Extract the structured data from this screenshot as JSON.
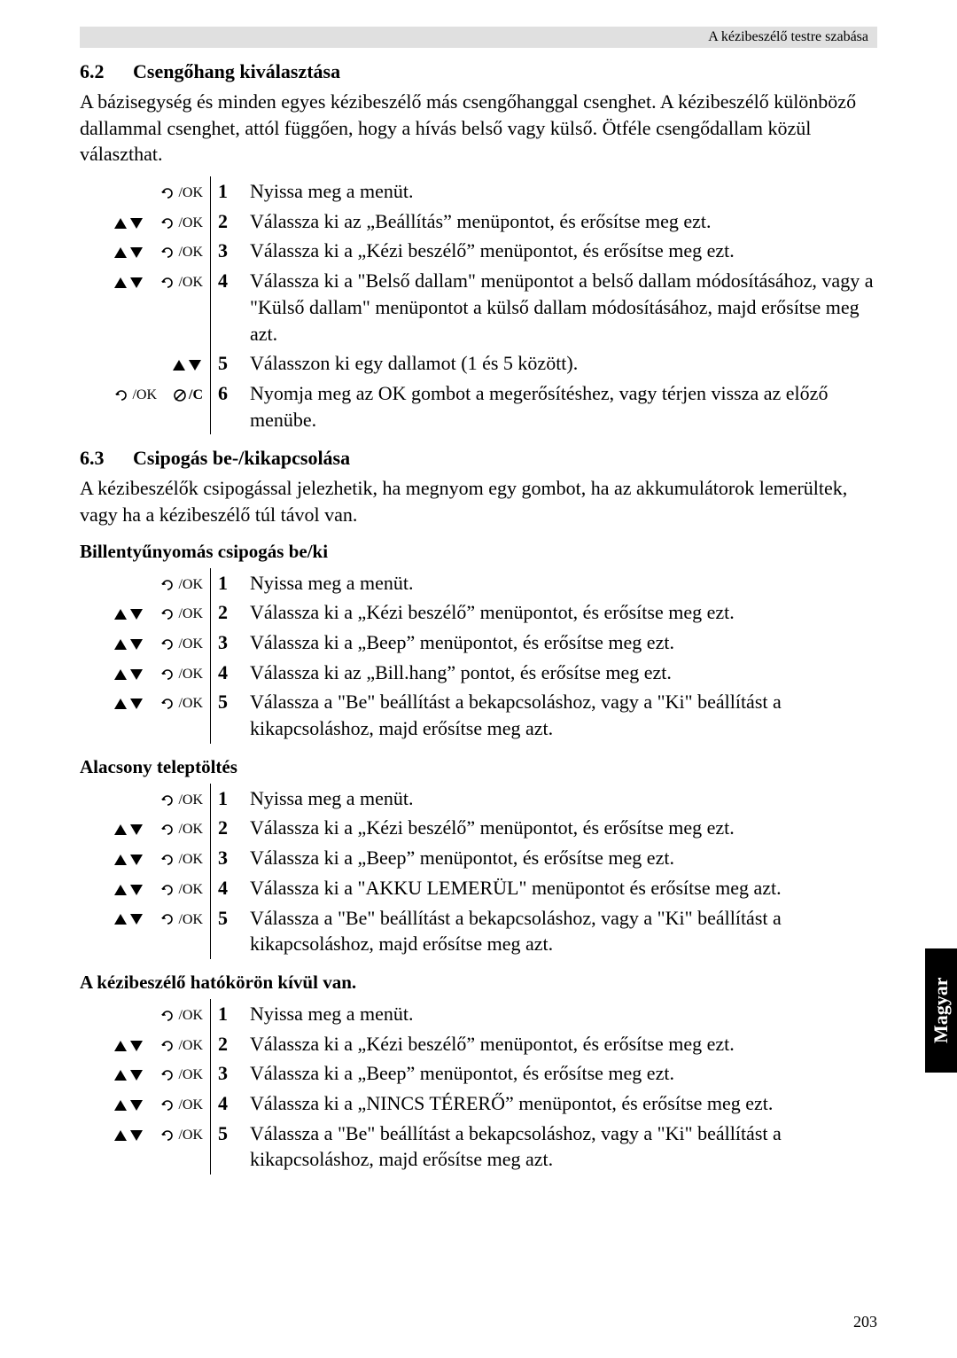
{
  "header": {
    "right_text": "A kézibeszélő testre szabása"
  },
  "side_tab": "Magyar",
  "page_number": "203",
  "icons": {
    "ok": "/OK",
    "cancel_suffix": "/C"
  },
  "section62": {
    "num": "6.2",
    "title": "Csengőhang kiválasztása",
    "intro": "A bázisegység és minden egyes kézibeszélő más csengőhanggal csenghet. A kézibeszélő különböző dallammal csenghet, attól függően, hogy a hívás belső vagy külső. Ötféle csengődallam közül választhat.",
    "steps": [
      {
        "icons": [
          "ok"
        ],
        "num": "1",
        "text": "Nyissa meg a menüt."
      },
      {
        "icons": [
          "updown",
          "ok"
        ],
        "num": "2",
        "text": "Válassza ki az „Beállítás” menüpontot, és erősítse meg ezt."
      },
      {
        "icons": [
          "updown",
          "ok"
        ],
        "num": "3",
        "text": "Válassza ki a „Kézi beszélő” menüpontot, és erősítse meg ezt."
      },
      {
        "icons": [
          "updown",
          "ok"
        ],
        "num": "4",
        "text": "Válassza ki a \"Belső dallam\" menüpontot a belső dallam módosításához, vagy a \"Külső dallam\" menüpontot a külső dallam módosításához, majd erősítse meg azt."
      },
      {
        "icons": [
          "updown"
        ],
        "num": "5",
        "text": "Válasszon ki egy dallamot (1 és 5 között)."
      },
      {
        "icons": [
          "ok",
          "cancel"
        ],
        "num": "6",
        "text": "Nyomja meg az OK gombot a megerősítéshez, vagy térjen vissza az előző menübe."
      }
    ]
  },
  "section63": {
    "num": "6.3",
    "title": "Csipogás be-/kikapcsolása",
    "intro": "A kézibeszélők csipogással jelezhetik, ha megnyom egy gombot, ha az akkumulátorok lemerültek, vagy ha a kézibeszélő túl távol van.",
    "sub1": {
      "title": "Billentyűnyomás csipogás be/ki",
      "steps": [
        {
          "icons": [
            "ok"
          ],
          "num": "1",
          "text": "Nyissa meg a menüt."
        },
        {
          "icons": [
            "updown",
            "ok"
          ],
          "num": "2",
          "text": "Válassza ki a „Kézi beszélő” menüpontot, és erősítse meg ezt."
        },
        {
          "icons": [
            "updown",
            "ok"
          ],
          "num": "3",
          "text": "Válassza ki a „Beep” menüpontot, és erősítse meg ezt."
        },
        {
          "icons": [
            "updown",
            "ok"
          ],
          "num": "4",
          "text": "Válassza ki az „Bill.hang” pontot, és erősítse meg ezt."
        },
        {
          "icons": [
            "updown",
            "ok"
          ],
          "num": "5",
          "text": "Válassza a \"Be\" beállítást a bekapcsoláshoz, vagy a \"Ki\" beállítást a kikapcsoláshoz, majd erősítse meg azt."
        }
      ]
    },
    "sub2": {
      "title": "Alacsony teleptöltés",
      "steps": [
        {
          "icons": [
            "ok"
          ],
          "num": "1",
          "text": "Nyissa meg a menüt."
        },
        {
          "icons": [
            "updown",
            "ok"
          ],
          "num": "2",
          "text": "Válassza ki a „Kézi beszélő” menüpontot, és erősítse meg ezt."
        },
        {
          "icons": [
            "updown",
            "ok"
          ],
          "num": "3",
          "text": "Válassza ki a „Beep” menüpontot, és erősítse meg ezt."
        },
        {
          "icons": [
            "updown",
            "ok"
          ],
          "num": "4",
          "text": "Válassza ki a \"AKKU LEMERÜL\" menüpontot és erősítse meg azt."
        },
        {
          "icons": [
            "updown",
            "ok"
          ],
          "num": "5",
          "text": "Válassza a \"Be\" beállítást a bekapcsoláshoz, vagy a \"Ki\" beállítást a kikapcsoláshoz, majd erősítse meg azt."
        }
      ]
    },
    "sub3": {
      "title": "A kézibeszélő hatókörön kívül van.",
      "steps": [
        {
          "icons": [
            "ok"
          ],
          "num": "1",
          "text": "Nyissa meg a menüt."
        },
        {
          "icons": [
            "updown",
            "ok"
          ],
          "num": "2",
          "text": "Válassza ki a „Kézi beszélő” menüpontot, és erősítse meg ezt."
        },
        {
          "icons": [
            "updown",
            "ok"
          ],
          "num": "3",
          "text": "Válassza ki a „Beep” menüpontot, és erősítse meg ezt."
        },
        {
          "icons": [
            "updown",
            "ok"
          ],
          "num": "4",
          "text": "Válassza ki a „NINCS TÉRERŐ” menüpontot, és erősítse meg ezt."
        },
        {
          "icons": [
            "updown",
            "ok"
          ],
          "num": "5",
          "text": "Válassza a \"Be\" beállítást a bekapcsoláshoz, vagy a \"Ki\" beállítást a kikapcsoláshoz, majd erősítse meg azt."
        }
      ]
    }
  }
}
